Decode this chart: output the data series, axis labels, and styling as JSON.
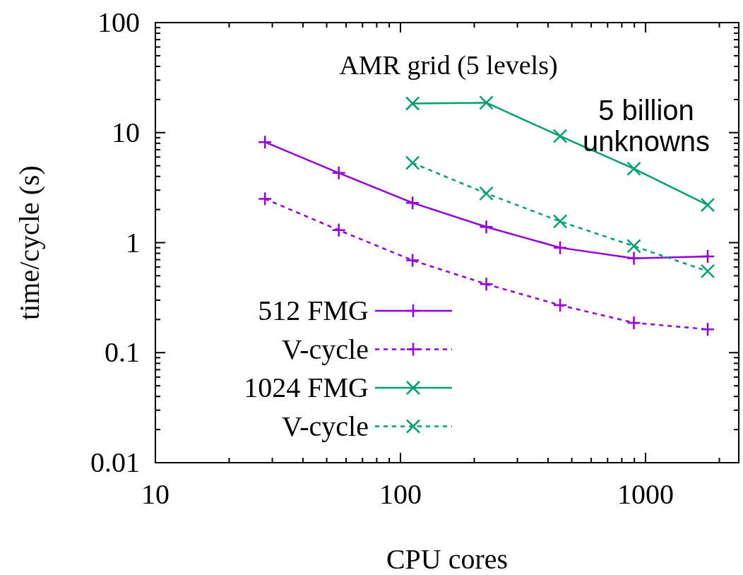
{
  "chart_data": {
    "type": "line",
    "xlabel": "CPU cores",
    "ylabel": "time/cycle (s)",
    "log": "xy",
    "grid": false,
    "legend": "bottom left",
    "xlim": [
      10,
      2400
    ],
    "ylim": [
      0.01,
      100
    ],
    "xticks": [
      10,
      {
        "value": 20,
        "label": null
      },
      {
        "value": 30,
        "label": null
      },
      {
        "value": 40,
        "label": null
      },
      {
        "value": 50,
        "label": null
      },
      {
        "value": 60,
        "label": null
      },
      {
        "value": 70,
        "label": null
      },
      {
        "value": 80,
        "label": null
      },
      {
        "value": 90,
        "label": null
      },
      100,
      {
        "value": 200,
        "label": null
      },
      {
        "value": 300,
        "label": null
      },
      {
        "value": 400,
        "label": null
      },
      {
        "value": 500,
        "label": null
      },
      {
        "value": 600,
        "label": null
      },
      {
        "value": 700,
        "label": null
      },
      {
        "value": 800,
        "label": null
      },
      {
        "value": 900,
        "label": null
      },
      1000,
      {
        "value": 2000,
        "label": null
      }
    ],
    "yticks": [
      0.01,
      {
        "value": 0.02,
        "label": null
      },
      {
        "value": 0.03,
        "label": null
      },
      {
        "value": 0.04,
        "label": null
      },
      {
        "value": 0.05,
        "label": null
      },
      {
        "value": 0.06,
        "label": null
      },
      {
        "value": 0.07,
        "label": null
      },
      {
        "value": 0.08,
        "label": null
      },
      {
        "value": 0.09,
        "label": null
      },
      0.1,
      {
        "value": 0.2,
        "label": null
      },
      {
        "value": 0.3,
        "label": null
      },
      {
        "value": 0.4,
        "label": null
      },
      {
        "value": 0.5,
        "label": null
      },
      {
        "value": 0.6,
        "label": null
      },
      {
        "value": 0.7,
        "label": null
      },
      {
        "value": 0.8,
        "label": null
      },
      {
        "value": 0.9,
        "label": null
      },
      1,
      {
        "value": 2,
        "label": null
      },
      {
        "value": 3,
        "label": null
      },
      {
        "value": 4,
        "label": null
      },
      {
        "value": 5,
        "label": null
      },
      {
        "value": 6,
        "label": null
      },
      {
        "value": 7,
        "label": null
      },
      {
        "value": 8,
        "label": null
      },
      {
        "value": 9,
        "label": null
      },
      10,
      {
        "value": 20,
        "label": null
      },
      {
        "value": 30,
        "label": null
      },
      {
        "value": 40,
        "label": null
      },
      {
        "value": 50,
        "label": null
      },
      {
        "value": 60,
        "label": null
      },
      {
        "value": 70,
        "label": null
      },
      {
        "value": 80,
        "label": null
      },
      {
        "value": 90,
        "label": null
      },
      100
    ],
    "annotations": [
      "AMR grid (5 levels)",
      "5 billion\nunknowns"
    ],
    "series": [
      {
        "name": "512 FMG",
        "color": "#9400d3",
        "marker": "plus",
        "line_style": "solid",
        "x": [
          28,
          56,
          112,
          224,
          448,
          896,
          1792
        ],
        "values": [
          8.2,
          4.3,
          2.3,
          1.39,
          0.9,
          0.72,
          0.75
        ]
      },
      {
        "name": "V-cycle",
        "color": "#9400d3",
        "marker": "plus",
        "line_style": "dashed",
        "x": [
          28,
          56,
          112,
          224,
          448,
          896,
          1792
        ],
        "values": [
          2.5,
          1.3,
          0.69,
          0.42,
          0.27,
          0.187,
          0.163
        ]
      },
      {
        "name": "1024 FMG",
        "color": "#009e73",
        "marker": "cross",
        "line_style": "solid",
        "x": [
          112,
          224,
          448,
          896,
          1792
        ],
        "values": [
          18.4,
          18.7,
          9.3,
          4.7,
          2.2
        ]
      },
      {
        "name": "V-cycle",
        "color": "#009e73",
        "marker": "cross",
        "line_style": "dashed",
        "x": [
          112,
          224,
          448,
          896,
          1792
        ],
        "values": [
          5.3,
          2.8,
          1.56,
          0.93,
          0.55
        ]
      }
    ]
  }
}
